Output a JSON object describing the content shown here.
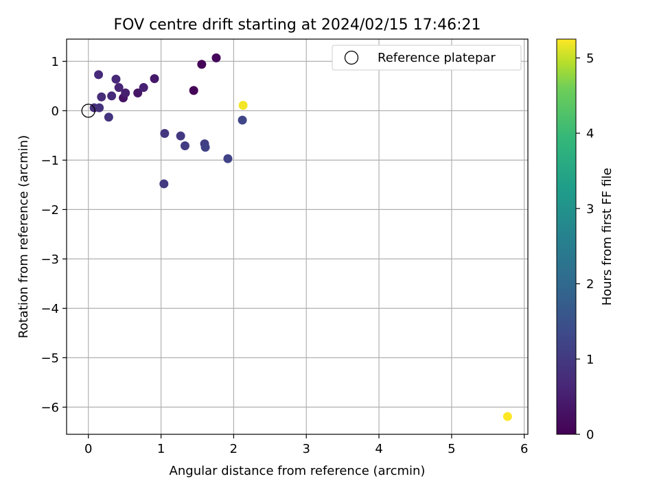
{
  "chart_data": {
    "type": "scatter",
    "title": "FOV centre drift starting at 2024/02/15 17:46:21",
    "xlabel": "Angular distance from reference (arcmin)",
    "ylabel": "Rotation from reference (arcmin)",
    "xlim": [
      -0.3,
      6.05
    ],
    "ylim": [
      -6.55,
      1.45
    ],
    "xticks": [
      0,
      1,
      2,
      3,
      4,
      5,
      6
    ],
    "xtick_labels": [
      "0",
      "1",
      "2",
      "3",
      "4",
      "5",
      "6"
    ],
    "yticks": [
      1,
      0,
      -1,
      -2,
      -3,
      -4,
      -5,
      -6
    ],
    "ytick_labels": [
      "1",
      "0",
      "−1",
      "−2",
      "−3",
      "−4",
      "−5",
      "−6"
    ],
    "grid": true,
    "legend": {
      "placement": "upper right",
      "entries": [
        {
          "label": "Reference platepar",
          "marker": "open-circle"
        }
      ]
    },
    "reference_point": {
      "x": 0,
      "y": 0
    },
    "colorbar": {
      "label": "Hours from first FF file",
      "colormap": "viridis",
      "range": [
        0,
        5.25
      ],
      "ticks": [
        0,
        1,
        2,
        3,
        4,
        5
      ],
      "tick_labels": [
        "0",
        "1",
        "2",
        "3",
        "4",
        "5"
      ]
    },
    "series": [
      {
        "points": [
          {
            "x": 1.56,
            "y": 0.94,
            "c": 0.05
          },
          {
            "x": 1.76,
            "y": 1.07,
            "c": 0.12
          },
          {
            "x": 1.45,
            "y": 0.41,
            "c": 0.05
          },
          {
            "x": 0.48,
            "y": 0.26,
            "c": 0.3
          },
          {
            "x": 0.68,
            "y": 0.36,
            "c": 0.35
          },
          {
            "x": 0.91,
            "y": 0.65,
            "c": 0.4
          },
          {
            "x": 0.51,
            "y": 0.36,
            "c": 0.5
          },
          {
            "x": 0.76,
            "y": 0.47,
            "c": 0.55
          },
          {
            "x": 0.42,
            "y": 0.47,
            "c": 0.6
          },
          {
            "x": 0.38,
            "y": 0.64,
            "c": 0.65
          },
          {
            "x": 0.14,
            "y": 0.73,
            "c": 0.7
          },
          {
            "x": 0.32,
            "y": 0.3,
            "c": 0.7
          },
          {
            "x": 0.18,
            "y": 0.28,
            "c": 0.75
          },
          {
            "x": 0.08,
            "y": 0.06,
            "c": 0.8
          },
          {
            "x": 0.15,
            "y": 0.06,
            "c": 0.85
          },
          {
            "x": 0.28,
            "y": -0.13,
            "c": 0.9
          },
          {
            "x": 1.05,
            "y": -0.46,
            "c": 0.95
          },
          {
            "x": 1.27,
            "y": -0.51,
            "c": 1.0
          },
          {
            "x": 1.04,
            "y": -1.48,
            "c": 1.0
          },
          {
            "x": 1.33,
            "y": -0.71,
            "c": 1.05
          },
          {
            "x": 1.6,
            "y": -0.67,
            "c": 1.1
          },
          {
            "x": 1.61,
            "y": -0.74,
            "c": 1.15
          },
          {
            "x": 1.92,
            "y": -0.97,
            "c": 1.2
          },
          {
            "x": 2.12,
            "y": -0.19,
            "c": 1.25
          },
          {
            "x": 2.13,
            "y": 0.11,
            "c": 5.2
          },
          {
            "x": 5.77,
            "y": -6.19,
            "c": 5.25
          }
        ]
      }
    ]
  }
}
